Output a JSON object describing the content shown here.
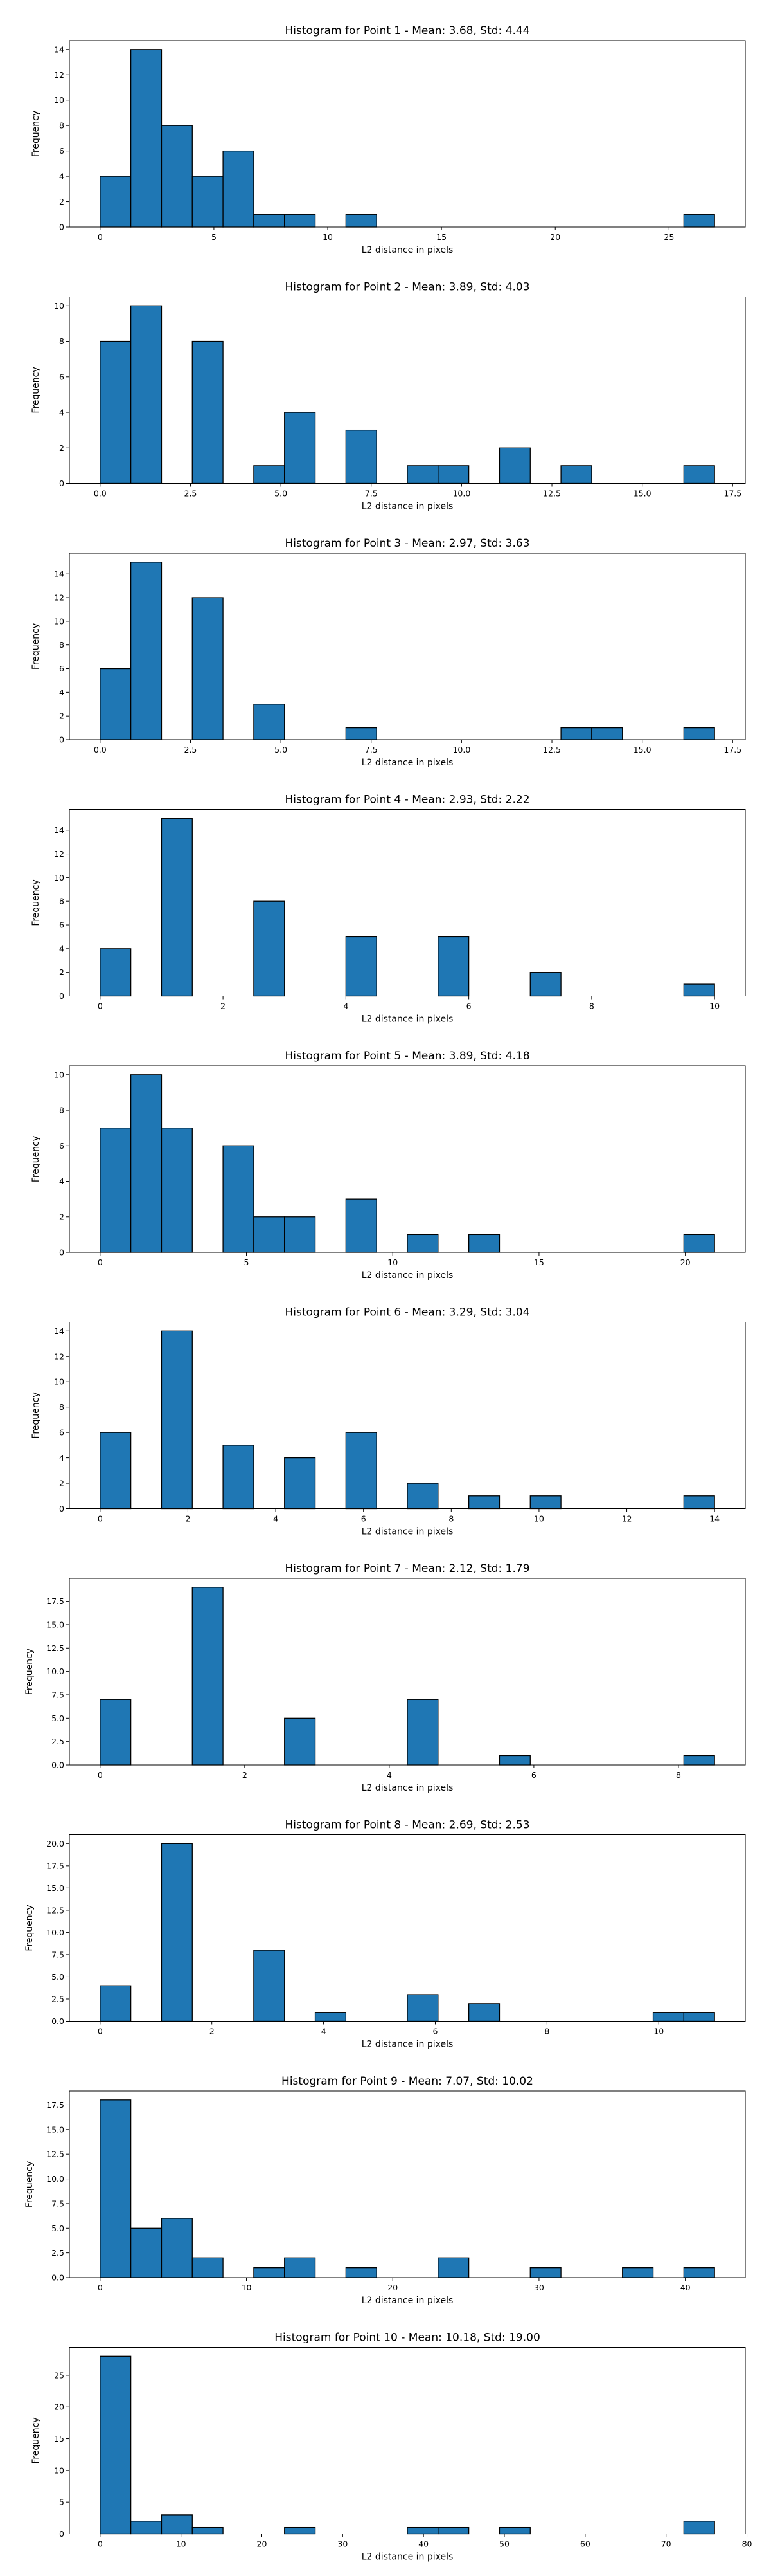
{
  "chart_data": [
    {
      "type": "bar",
      "title": "Histogram for Point 1 - Mean: 3.68, Std: 4.44",
      "xlabel": "L2 distance in pixels",
      "ylabel": "Frequency",
      "xlim": [
        -1.35,
        28.35
      ],
      "ylim": [
        0,
        14.7
      ],
      "xticks": [
        0,
        5,
        10,
        15,
        20,
        25
      ],
      "yticks": [
        0,
        2,
        4,
        6,
        8,
        10,
        12,
        14
      ],
      "bin_edges": [
        0.0,
        1.35,
        2.7,
        4.05,
        5.4,
        6.75,
        8.1,
        9.45,
        10.8,
        12.15,
        13.5,
        14.85,
        16.2,
        17.55,
        18.9,
        20.25,
        21.6,
        22.95,
        24.3,
        25.65,
        27.0
      ],
      "values": [
        4,
        14,
        8,
        4,
        6,
        1,
        1,
        0,
        1,
        0,
        0,
        0,
        0,
        0,
        0,
        0,
        0,
        0,
        0,
        1
      ]
    },
    {
      "type": "bar",
      "title": "Histogram for Point 2 - Mean: 3.89, Std: 4.03",
      "xlabel": "L2 distance in pixels",
      "ylabel": "Frequency",
      "xlim": [
        -0.85,
        17.85
      ],
      "ylim": [
        0,
        10.5
      ],
      "xticks": [
        0.0,
        2.5,
        5.0,
        7.5,
        10.0,
        12.5,
        15.0,
        17.5
      ],
      "xtick_labels": [
        "0.0",
        "2.5",
        "5.0",
        "7.5",
        "10.0",
        "12.5",
        "15.0",
        "17.5"
      ],
      "yticks": [
        0,
        2,
        4,
        6,
        8,
        10
      ],
      "bin_edges": [
        0.0,
        0.85,
        1.7,
        2.55,
        3.4,
        4.25,
        5.1,
        5.95,
        6.8,
        7.65,
        8.5,
        9.35,
        10.2,
        11.05,
        11.9,
        12.75,
        13.6,
        14.45,
        15.3,
        16.15,
        17.0
      ],
      "values": [
        8,
        10,
        0,
        8,
        0,
        1,
        4,
        0,
        3,
        0,
        1,
        1,
        0,
        2,
        0,
        1,
        0,
        0,
        0,
        1
      ]
    },
    {
      "type": "bar",
      "title": "Histogram for Point 3 - Mean: 2.97, Std: 3.63",
      "xlabel": "L2 distance in pixels",
      "ylabel": "Frequency",
      "xlim": [
        -0.85,
        17.85
      ],
      "ylim": [
        0,
        15.75
      ],
      "xticks": [
        0.0,
        2.5,
        5.0,
        7.5,
        10.0,
        12.5,
        15.0,
        17.5
      ],
      "xtick_labels": [
        "0.0",
        "2.5",
        "5.0",
        "7.5",
        "10.0",
        "12.5",
        "15.0",
        "17.5"
      ],
      "yticks": [
        0,
        2,
        4,
        6,
        8,
        10,
        12,
        14
      ],
      "bin_edges": [
        0.0,
        0.85,
        1.7,
        2.55,
        3.4,
        4.25,
        5.1,
        5.95,
        6.8,
        7.65,
        8.5,
        9.35,
        10.2,
        11.05,
        11.9,
        12.75,
        13.6,
        14.45,
        15.3,
        16.15,
        17.0
      ],
      "values": [
        6,
        15,
        0,
        12,
        0,
        3,
        0,
        0,
        1,
        0,
        0,
        0,
        0,
        0,
        0,
        1,
        1,
        0,
        0,
        1
      ]
    },
    {
      "type": "bar",
      "title": "Histogram for Point 4 - Mean: 2.93, Std: 2.22",
      "xlabel": "L2 distance in pixels",
      "ylabel": "Frequency",
      "xlim": [
        -0.5,
        10.5
      ],
      "ylim": [
        0,
        15.75
      ],
      "xticks": [
        0,
        2,
        4,
        6,
        8,
        10
      ],
      "yticks": [
        0,
        2,
        4,
        6,
        8,
        10,
        12,
        14
      ],
      "bin_edges": [
        0.0,
        0.5,
        1.0,
        1.5,
        2.0,
        2.5,
        3.0,
        3.5,
        4.0,
        4.5,
        5.0,
        5.5,
        6.0,
        6.5,
        7.0,
        7.5,
        8.0,
        8.5,
        9.0,
        9.5,
        10.0
      ],
      "values": [
        4,
        0,
        15,
        0,
        0,
        8,
        0,
        0,
        5,
        0,
        0,
        5,
        0,
        0,
        2,
        0,
        0,
        0,
        0,
        1
      ]
    },
    {
      "type": "bar",
      "title": "Histogram for Point 5 - Mean: 3.89, Std: 4.18",
      "xlabel": "L2 distance in pixels",
      "ylabel": "Frequency",
      "xlim": [
        -1.05,
        22.05
      ],
      "ylim": [
        0,
        10.5
      ],
      "xticks": [
        0,
        5,
        10,
        15,
        20
      ],
      "yticks": [
        0,
        2,
        4,
        6,
        8,
        10
      ],
      "bin_edges": [
        0.0,
        1.05,
        2.1,
        3.15,
        4.2,
        5.25,
        6.3,
        7.35,
        8.4,
        9.45,
        10.5,
        11.55,
        12.6,
        13.65,
        14.7,
        15.75,
        16.8,
        17.85,
        18.9,
        19.95,
        21.0
      ],
      "values": [
        7,
        10,
        7,
        0,
        6,
        2,
        2,
        0,
        3,
        0,
        1,
        0,
        1,
        0,
        0,
        0,
        0,
        0,
        0,
        1
      ]
    },
    {
      "type": "bar",
      "title": "Histogram for Point 6 - Mean: 3.29, Std: 3.04",
      "xlabel": "L2 distance in pixels",
      "ylabel": "Frequency",
      "xlim": [
        -0.7,
        14.7
      ],
      "ylim": [
        0,
        14.7
      ],
      "xticks": [
        0,
        2,
        4,
        6,
        8,
        10,
        12,
        14
      ],
      "yticks": [
        0,
        2,
        4,
        6,
        8,
        10,
        12,
        14
      ],
      "bin_edges": [
        0.0,
        0.7,
        1.4,
        2.1,
        2.8,
        3.5,
        4.2,
        4.9,
        5.6,
        6.3,
        7.0,
        7.7,
        8.4,
        9.1,
        9.8,
        10.5,
        11.2,
        11.9,
        12.6,
        13.3,
        14.0
      ],
      "values": [
        6,
        0,
        14,
        0,
        5,
        0,
        4,
        0,
        6,
        0,
        2,
        0,
        1,
        0,
        1,
        0,
        0,
        0,
        0,
        1
      ]
    },
    {
      "type": "bar",
      "title": "Histogram for Point 7 - Mean: 2.12, Std: 1.79",
      "xlabel": "L2 distance in pixels",
      "ylabel": "Frequency",
      "xlim": [
        -0.425,
        8.925
      ],
      "ylim": [
        0,
        19.95
      ],
      "xticks": [
        0,
        2,
        4,
        6,
        8
      ],
      "yticks": [
        0.0,
        2.5,
        5.0,
        7.5,
        10.0,
        12.5,
        15.0,
        17.5
      ],
      "ytick_labels": [
        "0.0",
        "2.5",
        "5.0",
        "7.5",
        "10.0",
        "12.5",
        "15.0",
        "17.5"
      ],
      "bin_edges": [
        0.0,
        0.425,
        0.85,
        1.275,
        1.7,
        2.125,
        2.55,
        2.975,
        3.4,
        3.825,
        4.25,
        4.675,
        5.1,
        5.525,
        5.95,
        6.375,
        6.8,
        7.225,
        7.65,
        8.075,
        8.5
      ],
      "values": [
        7,
        0,
        0,
        19,
        0,
        0,
        5,
        0,
        0,
        0,
        7,
        0,
        0,
        1,
        0,
        0,
        0,
        0,
        0,
        1
      ]
    },
    {
      "type": "bar",
      "title": "Histogram for Point 8 - Mean: 2.69, Std: 2.53",
      "xlabel": "L2 distance in pixels",
      "ylabel": "Frequency",
      "xlim": [
        -0.55,
        11.55
      ],
      "ylim": [
        0,
        21.0
      ],
      "xticks": [
        0,
        2,
        4,
        6,
        8,
        10
      ],
      "yticks": [
        0.0,
        2.5,
        5.0,
        7.5,
        10.0,
        12.5,
        15.0,
        17.5,
        20.0
      ],
      "ytick_labels": [
        "0.0",
        "2.5",
        "5.0",
        "7.5",
        "10.0",
        "12.5",
        "15.0",
        "17.5",
        "20.0"
      ],
      "bin_edges": [
        0.0,
        0.55,
        1.1,
        1.65,
        2.2,
        2.75,
        3.3,
        3.85,
        4.4,
        4.95,
        5.5,
        6.05,
        6.6,
        7.15,
        7.7,
        8.25,
        8.8,
        9.35,
        9.9,
        10.45,
        11.0
      ],
      "values": [
        4,
        0,
        20,
        0,
        0,
        8,
        0,
        1,
        0,
        0,
        3,
        0,
        2,
        0,
        0,
        0,
        0,
        0,
        1,
        1
      ]
    },
    {
      "type": "bar",
      "title": "Histogram for Point 9 - Mean: 7.07, Std: 10.02",
      "xlabel": "L2 distance in pixels",
      "ylabel": "Frequency",
      "xlim": [
        -2.1,
        44.1
      ],
      "ylim": [
        0,
        18.9
      ],
      "xticks": [
        0,
        10,
        20,
        30,
        40
      ],
      "yticks": [
        0.0,
        2.5,
        5.0,
        7.5,
        10.0,
        12.5,
        15.0,
        17.5
      ],
      "ytick_labels": [
        "0.0",
        "2.5",
        "5.0",
        "7.5",
        "10.0",
        "12.5",
        "15.0",
        "17.5"
      ],
      "bin_edges": [
        0.0,
        2.1,
        4.2,
        6.3,
        8.4,
        10.5,
        12.6,
        14.7,
        16.8,
        18.9,
        21.0,
        23.1,
        25.2,
        27.3,
        29.4,
        31.5,
        33.6,
        35.7,
        37.8,
        39.9,
        42.0
      ],
      "values": [
        18,
        5,
        6,
        2,
        0,
        1,
        2,
        0,
        1,
        0,
        0,
        2,
        0,
        0,
        1,
        0,
        0,
        1,
        0,
        1
      ]
    },
    {
      "type": "bar",
      "title": "Histogram for Point 10 - Mean: 10.18, Std: 19.00",
      "xlabel": "L2 distance in pixels",
      "ylabel": "Frequency",
      "xlim": [
        -3.8,
        79.8
      ],
      "ylim": [
        0,
        29.4
      ],
      "xticks": [
        0,
        10,
        20,
        30,
        40,
        50,
        60,
        70,
        80
      ],
      "yticks": [
        0,
        5,
        10,
        15,
        20,
        25
      ],
      "bin_edges": [
        0.0,
        3.8,
        7.6,
        11.4,
        15.2,
        19.0,
        22.8,
        26.6,
        30.4,
        34.2,
        38.0,
        41.8,
        45.6,
        49.4,
        53.2,
        57.0,
        60.8,
        64.6,
        68.4,
        72.2,
        76.0
      ],
      "values": [
        28,
        2,
        3,
        1,
        0,
        0,
        1,
        0,
        0,
        0,
        1,
        1,
        0,
        1,
        0,
        0,
        0,
        0,
        0,
        2
      ]
    }
  ],
  "colors": {
    "bar_fill": "#1f77b4",
    "bar_edge": "#000000",
    "axis": "#000000"
  }
}
